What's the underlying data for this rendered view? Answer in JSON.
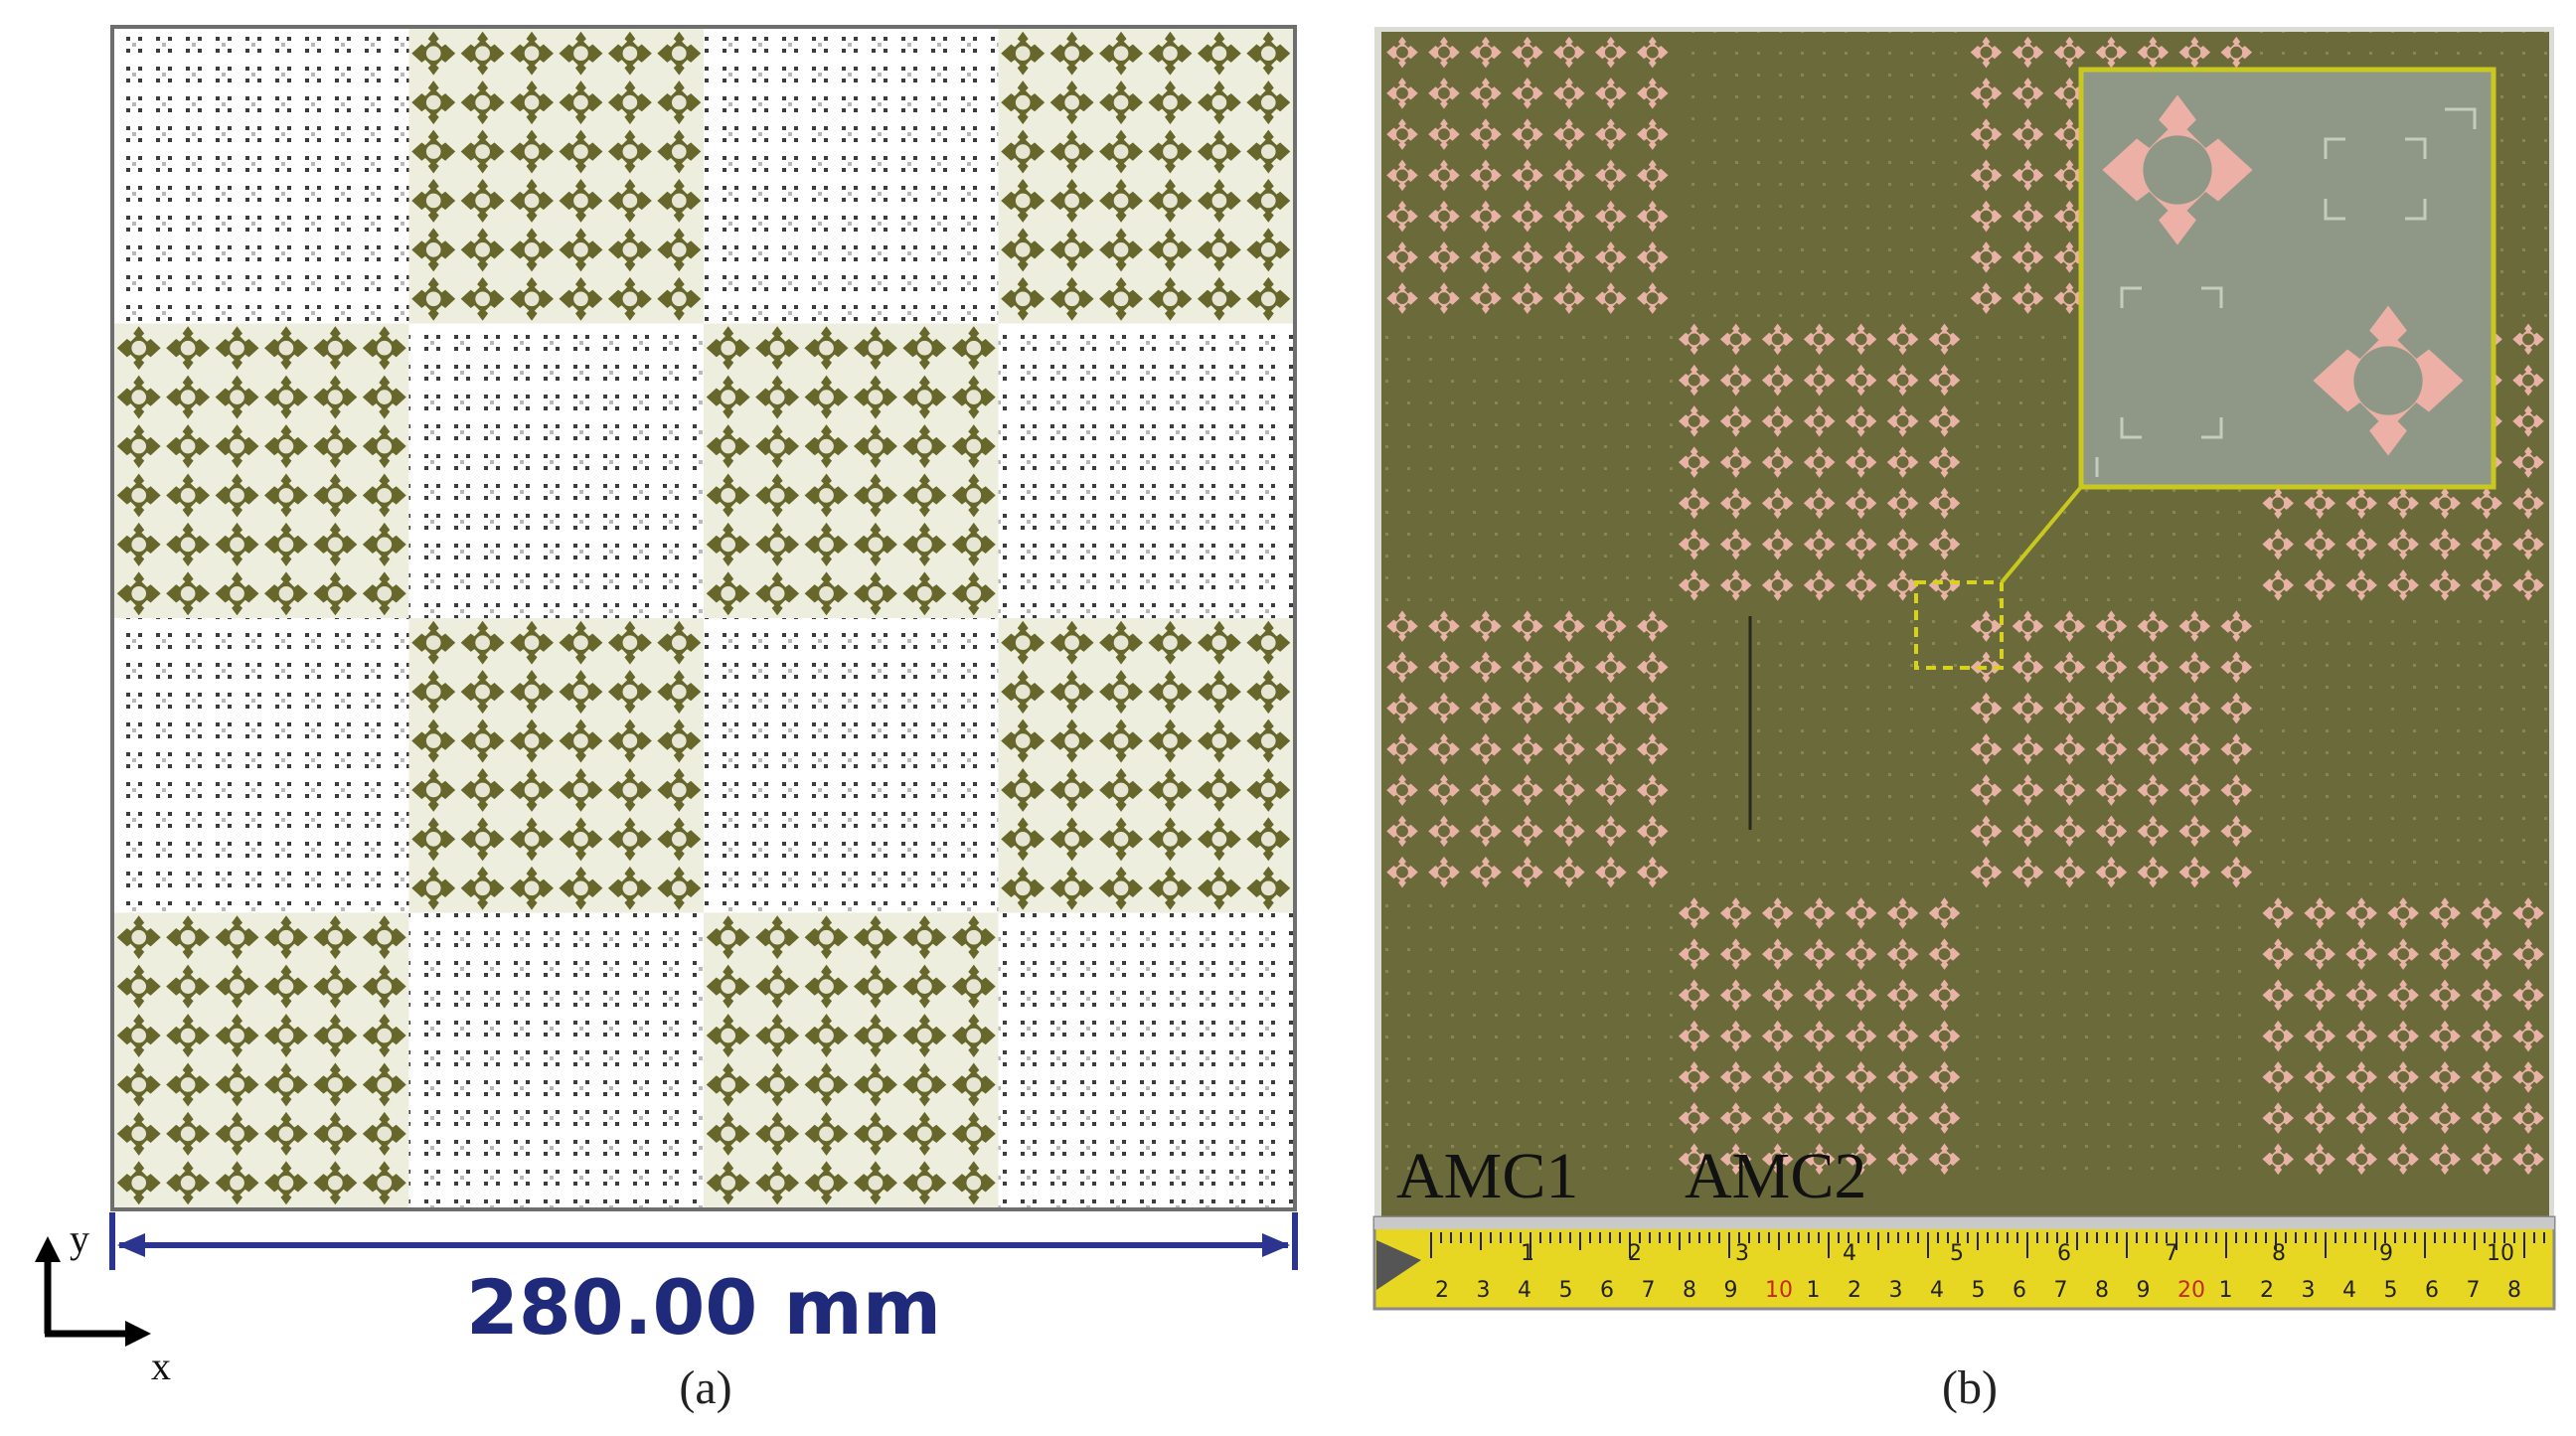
{
  "panel_a": {
    "caption": "(a)",
    "dimension_label": "280.00 mm",
    "axis_y": "y",
    "axis_x": "x",
    "pattern": [
      [
        0,
        1,
        0,
        1
      ],
      [
        1,
        0,
        1,
        0
      ],
      [
        0,
        1,
        0,
        1
      ],
      [
        1,
        0,
        1,
        0
      ]
    ]
  },
  "panel_b": {
    "caption": "(b)",
    "label_amc1": "AMC1",
    "label_amc2": "AMC2",
    "pattern": [
      [
        1,
        0,
        1,
        0
      ],
      [
        0,
        1,
        0,
        1
      ],
      [
        1,
        0,
        1,
        0
      ],
      [
        0,
        1,
        0,
        1
      ]
    ],
    "ruler_cm": [
      "1",
      "2",
      "3",
      "4",
      "5",
      "6",
      "7",
      "8",
      "9",
      "10"
    ],
    "ruler_inch": [
      "2",
      "3",
      "4",
      "5",
      "6",
      "7",
      "8",
      "9",
      "10",
      "1",
      "2",
      "3",
      "4",
      "5",
      "6",
      "7",
      "8",
      "9",
      "20",
      "1",
      "2",
      "3",
      "4",
      "5",
      "6",
      "7",
      "8"
    ]
  },
  "colors": {
    "dim_line": "#2b3590",
    "amc1_cell": "#67672b",
    "board": "#6b6a3a",
    "copper": "#e9b2a6",
    "zoom_border": "#c8c81e",
    "zoom_bg": "#8f9886",
    "ruler": "#e8d722"
  }
}
